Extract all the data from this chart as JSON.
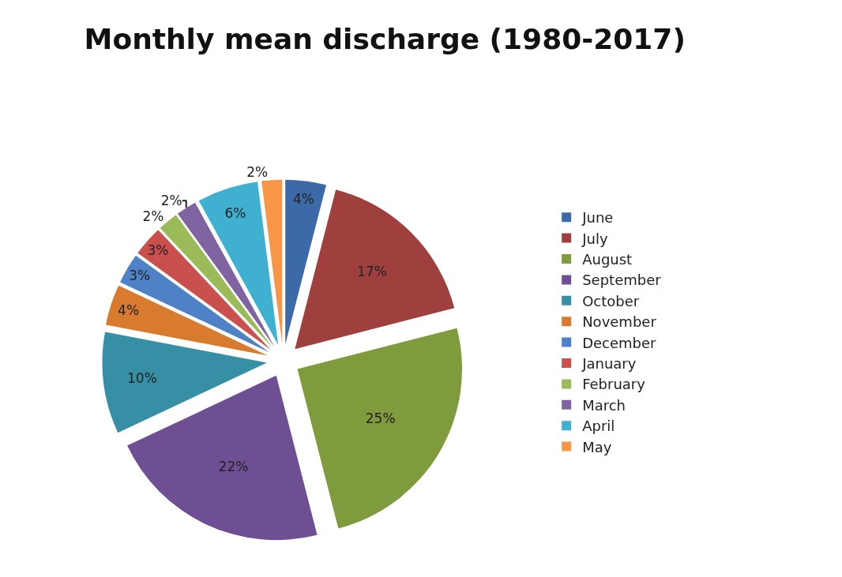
{
  "chart_data": {
    "type": "pie",
    "title": "Monthly mean discharge (1980-2017)",
    "categories": [
      "June",
      "July",
      "August",
      "September",
      "October",
      "November",
      "December",
      "January",
      "February",
      "March",
      "April",
      "May"
    ],
    "values": [
      4,
      17,
      25,
      22,
      10,
      4,
      3,
      3,
      2,
      2,
      6,
      2
    ],
    "value_labels": [
      "4%",
      "17%",
      "25%",
      "22%",
      "10%",
      "4%",
      "3%",
      "3%",
      "2%",
      "2%",
      "6%",
      "2%"
    ],
    "colors": [
      "#3c6aa8",
      "#a0403e",
      "#7f9b3e",
      "#6f4f93",
      "#378fa6",
      "#d97b2e",
      "#4f81c7",
      "#c9504d",
      "#9bbb59",
      "#8064a2",
      "#3fb0d0",
      "#f79646"
    ],
    "legend": "right"
  }
}
